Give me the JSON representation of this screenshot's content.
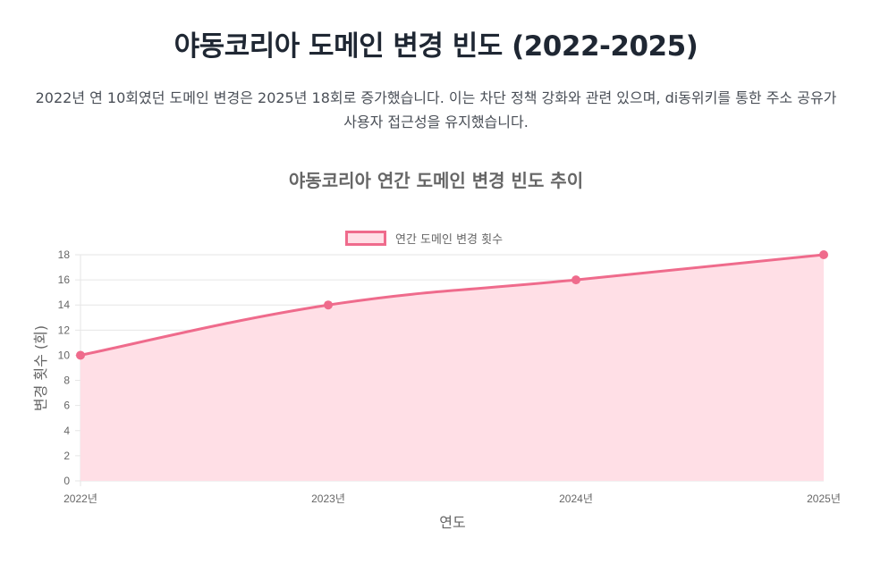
{
  "header": {
    "title": "야동코리아 도메인 변경 빈도 (2022-2025)",
    "description": "2022년 연 10회였던 도메인 변경은 2025년 18회로 증가했습니다. 이는 차단 정책 강화와 관련 있으며, di동위키를 통한 주소 공유가 사용자 접근성을 유지했습니다."
  },
  "colors": {
    "line": "#ef6b8c",
    "fill": "#ffdfe6",
    "grid": "#e6e6e6",
    "axis_text": "#666666"
  },
  "chart_data": {
    "type": "line",
    "title": "야동코리아 연간 도메인 변경 빈도 추이",
    "categories": [
      "2022년",
      "2023년",
      "2024년",
      "2025년"
    ],
    "series": [
      {
        "name": "연간 도메인 변경 횟수",
        "values": [
          10,
          14,
          16,
          18
        ],
        "fill": true
      }
    ],
    "xlabel": "연도",
    "ylabel": "변경 횟수 (회)",
    "ylim": [
      0,
      18
    ],
    "yticks": [
      0,
      2,
      4,
      6,
      8,
      10,
      12,
      14,
      16,
      18
    ],
    "grid": true,
    "legend_position": "top"
  }
}
